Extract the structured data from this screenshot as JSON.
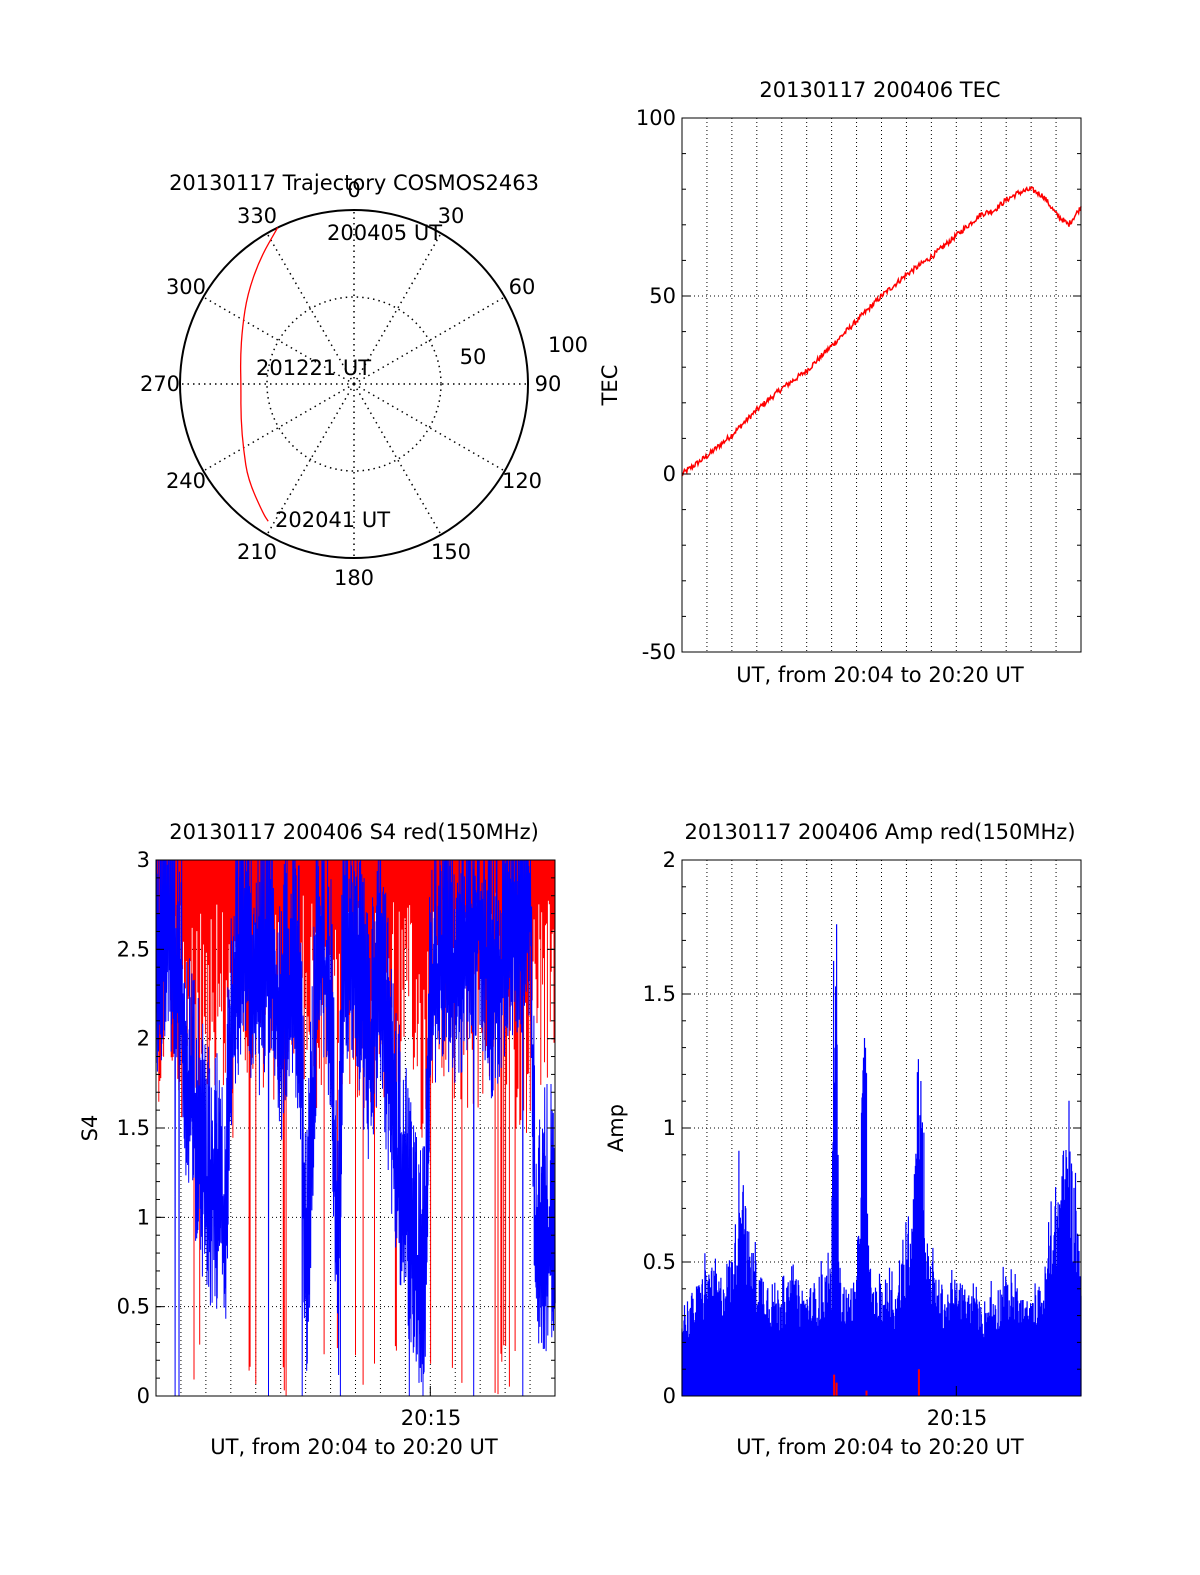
{
  "chart_data": [
    {
      "type": "polar",
      "title": "20130117 Trajectory COSMOS2463",
      "angle_labels": [
        "0",
        "30",
        "60",
        "90",
        "120",
        "150",
        "180",
        "210",
        "240",
        "270",
        "300",
        "330"
      ],
      "radius_labels": [
        "50",
        "100"
      ],
      "radius_range": [
        0,
        100
      ],
      "grid": true,
      "trajectory": {
        "color": "#ff0000",
        "points": [
          [
            334,
            100
          ],
          [
            323,
            90
          ],
          [
            310,
            80
          ],
          [
            297,
            72
          ],
          [
            283,
            67
          ],
          [
            268,
            65
          ],
          [
            253,
            68
          ],
          [
            239,
            74
          ],
          [
            228,
            82
          ],
          [
            215,
            91
          ],
          [
            212,
            93
          ]
        ]
      },
      "annotations": [
        "200405 UT",
        "201221 UT",
        "202041 UT"
      ]
    },
    {
      "type": "line",
      "title": "20130117 200406 TEC",
      "xlabel": "UT, from 20:04 to 20:20 UT",
      "ylabel": "TEC",
      "xlim": [
        0,
        16
      ],
      "ylim": [
        -50,
        100
      ],
      "yticks": [
        "-50",
        "0",
        "50",
        "100"
      ],
      "grid": true,
      "series": [
        {
          "color": "#ff0000",
          "x": [
            0,
            1,
            2,
            3,
            4,
            5,
            6,
            7,
            8,
            9,
            10,
            11,
            12,
            12.5,
            13,
            13.5,
            14,
            14.5,
            15,
            15.5,
            16
          ],
          "values": [
            0,
            5,
            11,
            18,
            24,
            29,
            36,
            43,
            50,
            56,
            61,
            67,
            73,
            74,
            77,
            79,
            80,
            78,
            73,
            70,
            75
          ]
        }
      ]
    },
    {
      "type": "line",
      "title": "20130117 200406 S4 red(150MHz)",
      "xlabel": "UT, from 20:04 to 20:20 UT",
      "ylabel": "S4",
      "xlim": [
        0,
        16
      ],
      "ylim": [
        0,
        3
      ],
      "yticks": [
        "0",
        "0.5",
        "1",
        "1.5",
        "2",
        "2.5",
        "3"
      ],
      "xticks": [
        {
          "x": 11,
          "label": "20:15"
        }
      ],
      "grid": true,
      "series": [
        {
          "color": "#0000ff",
          "x": [
            0,
            0.5,
            1,
            1.2,
            1.5,
            1.8,
            2,
            2.4,
            2.8,
            3,
            3.5,
            4,
            4.5,
            5,
            5.5,
            5.8,
            6,
            6.5,
            7,
            7.3,
            7.5,
            8,
            8.5,
            9,
            9.5,
            10,
            10.4,
            10.6,
            10.8,
            11,
            11.5,
            12,
            12.5,
            13,
            13.5,
            14,
            14.5,
            15,
            15.2,
            15.5,
            16
          ],
          "values": [
            2.3,
            2.6,
            2.2,
            1.8,
            1.5,
            1.3,
            1.1,
            1.05,
            1.0,
            2.0,
            2.6,
            2.2,
            2.5,
            2.0,
            2.4,
            2.0,
            0.5,
            2.5,
            2.2,
            0.5,
            2.4,
            2.5,
            1.8,
            2.3,
            1.5,
            1.0,
            0.6,
            0.5,
            0.7,
            2.2,
            2.5,
            2.3,
            2.5,
            2.6,
            2.2,
            2.5,
            2.6,
            2.7,
            0.9,
            0.85,
            0.85
          ]
        },
        {
          "color": "#ff0000",
          "x": [
            0,
            0.6,
            1.2,
            2,
            2.6,
            3.1,
            3.5,
            4.2,
            5,
            5.6,
            6.3,
            7,
            7.6,
            8.2,
            8.9,
            9.5,
            10,
            10.7,
            11.3,
            12,
            12.6,
            13.4,
            14,
            14.7,
            15.4,
            16
          ],
          "values": [
            2.8,
            2.9,
            2.7,
            2.9,
            2.8,
            2.6,
            2.9,
            2.8,
            2.7,
            2.9,
            2.8,
            2.6,
            2.9,
            2.8,
            2.7,
            2.9,
            2.8,
            2.6,
            2.9,
            2.8,
            2.7,
            2.9,
            2.8,
            2.6,
            2.9,
            2.8
          ]
        }
      ]
    },
    {
      "type": "line",
      "title": "20130117 200406 Amp red(150MHz)",
      "xlabel": "UT, from 20:04 to 20:20 UT",
      "ylabel": "Amp",
      "xlim": [
        0,
        16
      ],
      "ylim": [
        0,
        2
      ],
      "yticks": [
        "0",
        "0.5",
        "1",
        "1.5",
        "2"
      ],
      "xticks": [
        {
          "x": 11,
          "label": "20:15"
        }
      ],
      "grid": true,
      "series": [
        {
          "color": "#0000ff",
          "x": [
            0,
            0.5,
            1,
            1.5,
            2,
            2.2,
            2.4,
            2.6,
            3,
            3.5,
            4,
            4.5,
            5,
            5.5,
            6,
            6.1,
            6.2,
            6.3,
            6.6,
            7,
            7.3,
            7.4,
            7.5,
            7.8,
            8.2,
            8.6,
            9,
            9.3,
            9.5,
            9.8,
            10.2,
            10.6,
            11,
            11.5,
            12,
            12.5,
            13,
            13.5,
            14,
            14.5,
            15,
            15.5,
            16
          ],
          "values": [
            0.35,
            0.4,
            0.5,
            0.45,
            0.55,
            0.7,
            1.03,
            0.65,
            0.5,
            0.45,
            0.4,
            0.45,
            0.4,
            0.45,
            0.5,
            1.72,
            1.6,
            0.5,
            0.4,
            0.45,
            1.45,
            1.25,
            0.5,
            0.4,
            0.45,
            0.4,
            0.6,
            0.9,
            1.48,
            0.6,
            0.45,
            0.4,
            0.45,
            0.4,
            0.35,
            0.4,
            0.45,
            0.4,
            0.35,
            0.45,
            0.8,
            1.02,
            0.55
          ]
        },
        {
          "color": "#ff0000",
          "x": [
            6,
            6.1,
            6.2,
            6.3,
            7.3,
            7.4,
            9.4,
            9.5,
            9.6
          ],
          "values": [
            0,
            0.08,
            0.05,
            0,
            0,
            0.02,
            0,
            0.1,
            0
          ]
        }
      ]
    }
  ]
}
